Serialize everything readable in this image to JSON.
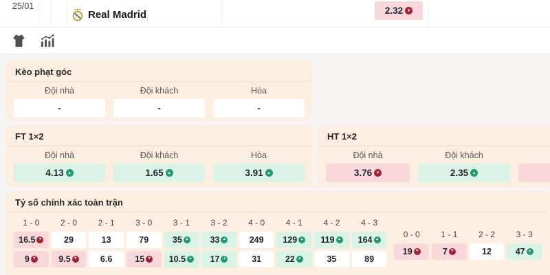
{
  "colors": {
    "page": "#f6f5f3",
    "panel": "#fcefe2",
    "mint": "#d9f3e6",
    "pink": "#f8d8da",
    "up": "#23986a",
    "down": "#a42134"
  },
  "match_row": {
    "date": "25/01",
    "team": "Real Madrid",
    "odds": {
      "value": "2.32",
      "trend": "down"
    }
  },
  "sections": {
    "corner": {
      "title": "Kèo phạt góc",
      "columns": [
        "Đội nhà",
        "Đội khách",
        "Hòa"
      ],
      "cells": [
        {
          "value": "-",
          "trend": "none"
        },
        {
          "value": "-",
          "trend": "none"
        },
        {
          "value": "-",
          "trend": "none"
        }
      ]
    },
    "ft": {
      "title": "FT 1×2",
      "columns": [
        "Đội nhà",
        "Đội khách",
        "Hòa"
      ],
      "cells": [
        {
          "value": "4.13",
          "trend": "up"
        },
        {
          "value": "1.65",
          "trend": "up"
        },
        {
          "value": "3.91",
          "trend": "up"
        }
      ]
    },
    "ht": {
      "title": "HT 1×2",
      "columns": [
        "Đội nhà",
        "Đội khách"
      ],
      "cells": [
        {
          "value": "3.76",
          "trend": "down"
        },
        {
          "value": "2.35",
          "trend": "up"
        },
        {
          "value": "",
          "trend": "none",
          "tone": "pink"
        }
      ]
    },
    "correct_score": {
      "title": "Tỷ số chính xác toàn trận",
      "main_scores": {
        "labels": [
          "1 - 0",
          "2 - 0",
          "2 - 1",
          "3 - 0",
          "3 - 1",
          "3 - 2",
          "4 - 0",
          "4 - 1",
          "4 - 2",
          "4 - 3"
        ],
        "row1": [
          {
            "value": "16.5",
            "trend": "down"
          },
          {
            "value": "29",
            "trend": "none"
          },
          {
            "value": "13",
            "trend": "none"
          },
          {
            "value": "79",
            "trend": "none"
          },
          {
            "value": "35",
            "trend": "up"
          },
          {
            "value": "33",
            "trend": "up"
          },
          {
            "value": "249",
            "trend": "none"
          },
          {
            "value": "129",
            "trend": "up"
          },
          {
            "value": "119",
            "trend": "up"
          },
          {
            "value": "164",
            "trend": "up"
          }
        ],
        "row2": [
          {
            "value": "9",
            "trend": "down"
          },
          {
            "value": "9.5",
            "trend": "down"
          },
          {
            "value": "6.6",
            "trend": "none"
          },
          {
            "value": "15",
            "trend": "down"
          },
          {
            "value": "10.5",
            "trend": "up"
          },
          {
            "value": "17",
            "trend": "up"
          },
          {
            "value": "31",
            "trend": "none"
          },
          {
            "value": "22",
            "trend": "up"
          },
          {
            "value": "35",
            "trend": "none"
          },
          {
            "value": "89",
            "trend": "none"
          }
        ]
      },
      "draw_scores": {
        "labels": [
          "0 - 0",
          "1 - 1",
          "2 - 2",
          "3 - 3"
        ],
        "row": [
          {
            "value": "19",
            "trend": "down"
          },
          {
            "value": "7",
            "trend": "down"
          },
          {
            "value": "12",
            "trend": "none"
          },
          {
            "value": "47",
            "trend": "up"
          }
        ]
      }
    }
  }
}
